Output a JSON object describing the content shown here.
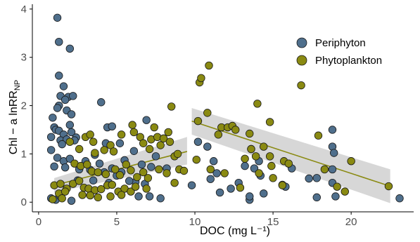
{
  "chart_data": {
    "type": "scatter",
    "title": "",
    "xlabel": "DOC (mg L⁻¹)",
    "ylabel_main": "Chl − a lnRR",
    "ylabel_sub": "NP",
    "xlim": [
      -0.4,
      24.0
    ],
    "ylim": [
      -0.2,
      4.1
    ],
    "xticks": [
      0,
      5,
      10,
      15,
      20
    ],
    "yticks": [
      0,
      1,
      2,
      3,
      4
    ],
    "grid": false,
    "legend_position": "top-right",
    "series": [
      {
        "name": "Periphyton",
        "color": "#4f6f8c",
        "points": [
          [
            1.2,
            3.82
          ],
          [
            1.3,
            3.32
          ],
          [
            2.0,
            3.18
          ],
          [
            1.3,
            2.62
          ],
          [
            1.6,
            2.4
          ],
          [
            1.4,
            2.2
          ],
          [
            1.9,
            2.18
          ],
          [
            2.2,
            2.2
          ],
          [
            1.7,
            2.12
          ],
          [
            1.3,
            2.0
          ],
          [
            1.2,
            1.95
          ],
          [
            1.8,
            1.9
          ],
          [
            2.1,
            1.82
          ],
          [
            4.0,
            2.07
          ],
          [
            0.9,
            1.75
          ],
          [
            1.0,
            1.55
          ],
          [
            1.1,
            1.5
          ],
          [
            1.3,
            1.48
          ],
          [
            1.6,
            1.4
          ],
          [
            2.0,
            1.6
          ],
          [
            2.1,
            1.45
          ],
          [
            2.4,
            1.34
          ],
          [
            4.4,
            1.55
          ],
          [
            4.7,
            1.57
          ],
          [
            1.4,
            1.28
          ],
          [
            1.8,
            1.3
          ],
          [
            2.3,
            1.28
          ],
          [
            1.5,
            1.2
          ],
          [
            0.8,
            1.35
          ],
          [
            0.8,
            1.08
          ],
          [
            1.2,
            0.92
          ],
          [
            1.6,
            0.85
          ],
          [
            2.0,
            0.9
          ],
          [
            3.6,
            0.98
          ],
          [
            3.0,
            0.85
          ],
          [
            3.9,
            0.8
          ],
          [
            5.5,
            0.87
          ],
          [
            5.2,
            1.22
          ],
          [
            6.1,
            1.06
          ],
          [
            4.3,
            1.22
          ],
          [
            5.3,
            0.62
          ],
          [
            5.0,
            0.55
          ],
          [
            4.7,
            0.7
          ],
          [
            6.6,
            0.78
          ],
          [
            7.2,
            0.73
          ],
          [
            6.9,
            1.7
          ],
          [
            8.2,
            0.7
          ],
          [
            7.5,
            0.95
          ],
          [
            1.0,
            0.74
          ],
          [
            1.7,
            0.72
          ],
          [
            2.6,
            0.68
          ],
          [
            3.3,
            0.67
          ],
          [
            4.2,
            0.62
          ],
          [
            6.2,
            0.42
          ],
          [
            6.8,
            0.38
          ],
          [
            2.5,
            0.45
          ],
          [
            3.5,
            0.45
          ],
          [
            4.5,
            0.4
          ],
          [
            5.8,
            0.44
          ],
          [
            0.8,
            0.08
          ],
          [
            1.1,
            0.05
          ],
          [
            1.4,
            0.12
          ],
          [
            2.1,
            0.03
          ],
          [
            6.4,
            0.12
          ],
          [
            7.1,
            0.12
          ],
          [
            7.8,
            0.08
          ],
          [
            9.8,
            0.35
          ],
          [
            10.2,
            1.25
          ],
          [
            10.8,
            1.15
          ],
          [
            11.2,
            0.85
          ],
          [
            11.4,
            0.6
          ],
          [
            11.0,
            0.48
          ],
          [
            11.6,
            0.2
          ],
          [
            12.3,
            0.28
          ],
          [
            12.8,
            0.4
          ],
          [
            13.2,
            0.75
          ],
          [
            13.6,
            1.1
          ],
          [
            13.8,
            0.7
          ],
          [
            14.1,
            0.85
          ],
          [
            14.2,
            0.55
          ],
          [
            13.5,
            0.05
          ],
          [
            13.5,
            0.12
          ],
          [
            14.4,
            0.18
          ],
          [
            15.6,
            0.36
          ],
          [
            15.8,
            0.32
          ],
          [
            16.2,
            0.7
          ],
          [
            17.3,
            0.49
          ],
          [
            17.8,
            0.5
          ],
          [
            18.8,
            1.5
          ],
          [
            18.8,
            1.15
          ],
          [
            18.9,
            1.02
          ],
          [
            18.8,
            0.68
          ],
          [
            18.8,
            0.4
          ],
          [
            17.8,
            0.1
          ],
          [
            19.0,
            0.12
          ],
          [
            23.1,
            0.08
          ]
        ]
      },
      {
        "name": "Phytoplankton",
        "color": "#8a8a12",
        "points": [
          [
            10.3,
            2.48
          ],
          [
            10.4,
            2.57
          ],
          [
            10.9,
            2.83
          ],
          [
            16.8,
            2.42
          ],
          [
            14.0,
            2.04
          ],
          [
            8.5,
            1.98
          ],
          [
            10.2,
            1.68
          ],
          [
            10.8,
            1.85
          ],
          [
            11.5,
            1.4
          ],
          [
            11.7,
            1.55
          ],
          [
            12.1,
            1.55
          ],
          [
            12.4,
            1.58
          ],
          [
            12.6,
            1.5
          ],
          [
            13.5,
            1.42
          ],
          [
            14.8,
            1.66
          ],
          [
            13.6,
            1.1
          ],
          [
            14.4,
            1.15
          ],
          [
            14.8,
            0.95
          ],
          [
            15.7,
            0.85
          ],
          [
            16.0,
            0.8
          ],
          [
            10.1,
            0.88
          ],
          [
            11.0,
            0.68
          ],
          [
            11.9,
            0.6
          ],
          [
            12.9,
            0.3
          ],
          [
            13.2,
            0.9
          ],
          [
            13.9,
            0.95
          ],
          [
            14.1,
            0.6
          ],
          [
            14.9,
            0.75
          ],
          [
            15.0,
            0.5
          ],
          [
            15.6,
            0.35
          ],
          [
            17.9,
            1.38
          ],
          [
            19.1,
            0.32
          ],
          [
            19.6,
            0.22
          ],
          [
            20.0,
            0.85
          ],
          [
            22.4,
            0.33
          ],
          [
            18.3,
            0.68
          ],
          [
            2.0,
            1.25
          ],
          [
            2.6,
            1.1
          ],
          [
            3.0,
            1.35
          ],
          [
            3.3,
            1.4
          ],
          [
            3.5,
            1.25
          ],
          [
            3.6,
            1.02
          ],
          [
            4.2,
            1.08
          ],
          [
            4.6,
            1.18
          ],
          [
            4.8,
            1.05
          ],
          [
            5.3,
            1.4
          ],
          [
            6.0,
            1.6
          ],
          [
            6.1,
            1.45
          ],
          [
            6.5,
            1.35
          ],
          [
            6.7,
            1.22
          ],
          [
            7.1,
            1.1
          ],
          [
            7.2,
            1.3
          ],
          [
            7.4,
            1.55
          ],
          [
            7.6,
            1.35
          ],
          [
            7.8,
            1.18
          ],
          [
            8.0,
            1.32
          ],
          [
            8.3,
            1.45
          ],
          [
            8.4,
            1.25
          ],
          [
            8.7,
            0.95
          ],
          [
            8.9,
            1.0
          ],
          [
            2.3,
            0.8
          ],
          [
            2.7,
            0.75
          ],
          [
            3.1,
            0.78
          ],
          [
            3.4,
            0.64
          ],
          [
            3.8,
            0.62
          ],
          [
            4.3,
            0.58
          ],
          [
            4.9,
            0.68
          ],
          [
            5.2,
            0.56
          ],
          [
            5.6,
            0.78
          ],
          [
            5.9,
            0.66
          ],
          [
            6.3,
            0.52
          ],
          [
            6.7,
            0.62
          ],
          [
            7.0,
            0.5
          ],
          [
            7.7,
            0.68
          ],
          [
            8.2,
            0.6
          ],
          [
            9.0,
            0.68
          ],
          [
            9.3,
            0.65
          ],
          [
            2.2,
            0.38
          ],
          [
            2.6,
            0.44
          ],
          [
            2.9,
            0.3
          ],
          [
            3.2,
            0.28
          ],
          [
            3.6,
            0.25
          ],
          [
            4.0,
            0.27
          ],
          [
            4.4,
            0.35
          ],
          [
            4.7,
            0.36
          ],
          [
            5.1,
            0.22
          ],
          [
            5.5,
            0.28
          ],
          [
            5.9,
            0.22
          ],
          [
            6.2,
            0.32
          ],
          [
            6.9,
            0.28
          ],
          [
            8.7,
            0.4
          ],
          [
            1.0,
            0.35
          ],
          [
            1.4,
            0.38
          ],
          [
            1.8,
            0.28
          ],
          [
            1.3,
            0.18
          ],
          [
            1.7,
            0.22
          ],
          [
            2.8,
            0.15
          ],
          [
            3.3,
            0.14
          ],
          [
            3.8,
            0.1
          ],
          [
            4.6,
            0.12
          ],
          [
            5.3,
            0.15
          ],
          [
            0.9,
            0.06
          ],
          [
            1.5,
            0.08
          ]
        ]
      }
    ],
    "trend_lines": [
      {
        "series": "Phytoplankton",
        "color": "#8a8a12",
        "x": [
          1.0,
          9.5
        ],
        "y": [
          0.35,
          1.05
        ],
        "ci_low": [
          0.2,
          0.78
        ],
        "ci_high": [
          0.5,
          1.35
        ]
      },
      {
        "series": "Phytoplankton",
        "color": "#8a8a12",
        "x": [
          9.8,
          22.5
        ],
        "y": [
          1.68,
          0.33
        ],
        "ci_low": [
          1.4,
          -0.02
        ],
        "ci_high": [
          1.95,
          0.68
        ]
      }
    ]
  }
}
